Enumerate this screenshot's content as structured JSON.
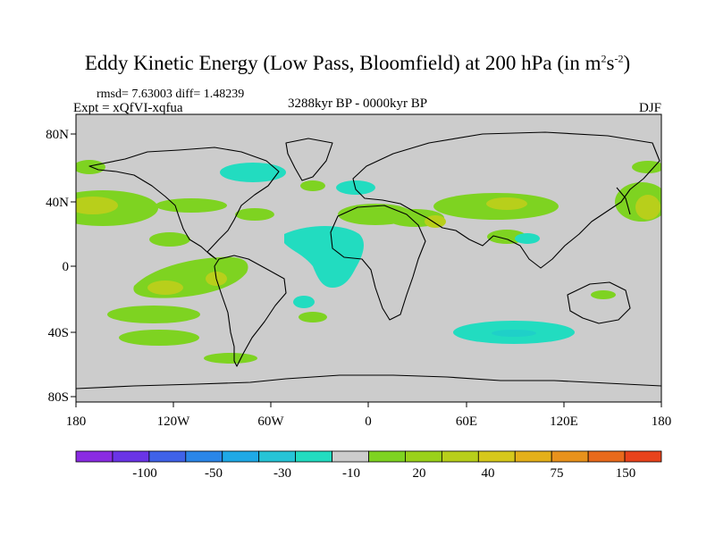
{
  "title": {
    "main": "Eddy Kinetic Energy (Low Pass, Bloomfield) at 200 hPa (in m",
    "sup1": "2",
    "mid": "s",
    "sup2": "-2",
    "end": ")"
  },
  "stats": "rmsd= 7.63003 diff= 1.48239",
  "experiment": "Expt = xQfVI-xqfua",
  "period": "3288kyr BP - 0000kyr BP",
  "season": "DJF",
  "axes": {
    "lat_ticks": [
      "80N",
      "40N",
      "0",
      "40S",
      "80S"
    ],
    "lon_ticks": [
      "180",
      "120W",
      "60W",
      "0",
      "60E",
      "120E",
      "180"
    ]
  },
  "colorbar": {
    "colors": [
      "#8a2be2",
      "#6a34e6",
      "#3f62e8",
      "#2a86e8",
      "#1fa9e6",
      "#26c4d6",
      "#22dcc0",
      "#cccccc",
      "#7ed321",
      "#9ad11a",
      "#b8cf1b",
      "#d6c81c",
      "#e4b01a",
      "#e8921c",
      "#e86a1c",
      "#e8431c"
    ],
    "labels": [
      "-100",
      "-50",
      "-30",
      "-10",
      "20",
      "40",
      "75",
      "150"
    ]
  },
  "legend_colors": {
    "ocean": "#cccccc",
    "pos1": "#7ed321",
    "pos2": "#b8cf1b",
    "neg1": "#22dcc0",
    "neg2": "#1fd0c8"
  }
}
